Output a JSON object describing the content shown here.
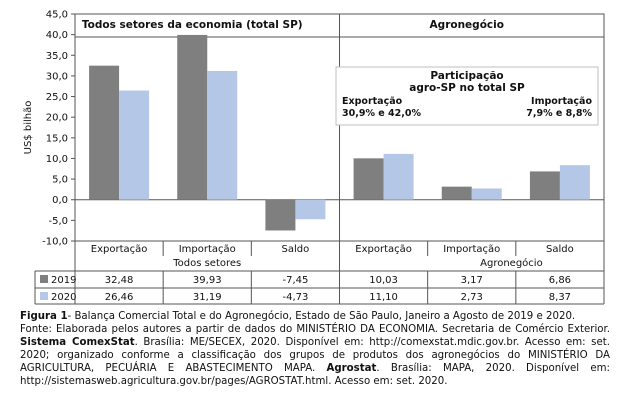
{
  "chart_data": {
    "type": "bar",
    "ylabel": "US$ bilhão",
    "ylim": [
      -10,
      45
    ],
    "yticks": [
      "-10,0",
      "-5,0",
      "0,0",
      "5,0",
      "10,0",
      "15,0",
      "20,0",
      "25,0",
      "30,0",
      "35,0",
      "40,0",
      "45,0"
    ],
    "grid": false,
    "legend": "left of data table",
    "categories": [
      "Exportação",
      "Importação",
      "Saldo",
      "Exportação",
      "Importação",
      "Saldo"
    ],
    "groups": [
      {
        "label": "Todos setores",
        "header": "Todos setores da economia (total SP)"
      },
      {
        "label": "Agronegócio",
        "header": "Agronegócio"
      }
    ],
    "series": [
      {
        "name": "2019",
        "color": "#7f7f7f",
        "values": [
          32.48,
          39.93,
          -7.45,
          10.03,
          3.17,
          6.86
        ],
        "labels": [
          "32,48",
          "39,93",
          "-7,45",
          "10,03",
          "3,17",
          "6,86"
        ]
      },
      {
        "name": "2020",
        "color": "#b4c7e7",
        "values": [
          26.46,
          31.19,
          -4.73,
          11.1,
          2.73,
          8.37
        ],
        "labels": [
          "26,46",
          "31,19",
          "-4,73",
          "11,10",
          "2,73",
          "8,37"
        ]
      }
    ],
    "annotation": {
      "title_line1": "Participação",
      "title_line2": "agro-SP no total SP",
      "left_line1": "Exportação",
      "left_line2": "30,9% e 42,0%",
      "right_line1": "Importação",
      "right_line2": "7,9% e 8,8%"
    }
  },
  "caption": {
    "fig_label": "Figura 1",
    "fig_text": "- Balança Comercial Total e do Agronegócio, Estado de São Paulo, Janeiro a Agosto de 2019 e 2020.",
    "source_pre": "Fonte: Elaborada pelos autores a partir de dados do MINISTÉRIO DA ECONOMIA. Secretaria de Comércio Exterior. ",
    "source_bold1": "Sistema ComexStat",
    "source_mid1": ". Brasília: ME/SECEX, 2020. Disponível em: http://comexstat.mdic.gov.br. Acesso em: set. 2020; organizado conforme a classificação dos grupos de produtos dos agronegócios do MINISTÉRIO DA AGRICULTURA, PECUÁRIA E ABASTECIMENTO MAPA. ",
    "source_bold2": "Agrostat",
    "source_end": ". Brasília: MAPA, 2020. Disponível em: http://sistemasweb.agricultura.gov.br/pages/AGROSTAT.html. Acesso em: set. 2020."
  }
}
